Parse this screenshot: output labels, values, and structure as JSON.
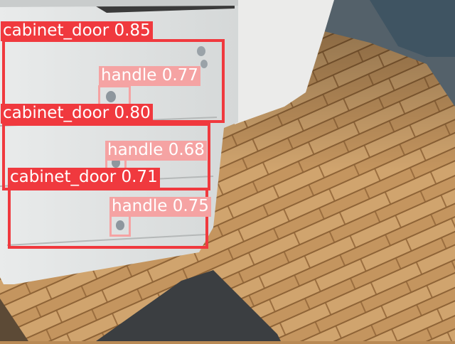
{
  "colors": {
    "cabinet_door": "#f0393e",
    "cabinet_door_text": "#ffffff",
    "handle": "#f5a3a3",
    "handle_text": "#ffffff"
  },
  "detections": [
    {
      "label": "cabinet_door 0.85",
      "class": "cabinet_door",
      "score": 0.85
    },
    {
      "label": "handle 0.77",
      "class": "handle",
      "score": 0.77
    },
    {
      "label": "cabinet_door 0.80",
      "class": "cabinet_door",
      "score": 0.8
    },
    {
      "label": "handle 0.68",
      "class": "handle",
      "score": 0.68
    },
    {
      "label": "cabinet_door 0.71",
      "class": "cabinet_door",
      "score": 0.71
    },
    {
      "label": "handle 0.75",
      "class": "handle",
      "score": 0.75
    }
  ]
}
